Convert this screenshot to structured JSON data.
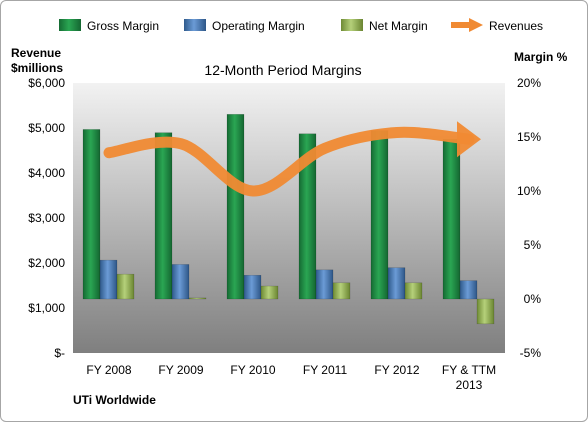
{
  "chart_data": {
    "type": "bar",
    "title": "12-Month Period Margins",
    "company_label": "UTi Worldwide",
    "left_axis": {
      "title_line1": "Revenue",
      "title_line2": "$millions",
      "range": [
        0,
        6000
      ],
      "ticks": [
        {
          "value": 0,
          "label": "$-"
        },
        {
          "value": 1000,
          "label": "$1,000"
        },
        {
          "value": 2000,
          "label": "$2,000"
        },
        {
          "value": 3000,
          "label": "$3,000"
        },
        {
          "value": 4000,
          "label": "$4,000"
        },
        {
          "value": 5000,
          "label": "$5,000"
        },
        {
          "value": 6000,
          "label": "$6,000"
        }
      ]
    },
    "right_axis": {
      "title": "Margin %",
      "range": [
        -5,
        20
      ],
      "ticks": [
        {
          "value": -5,
          "label": "-5%"
        },
        {
          "value": 0,
          "label": "0%"
        },
        {
          "value": 5,
          "label": "5%"
        },
        {
          "value": 10,
          "label": "10%"
        },
        {
          "value": 15,
          "label": "15%"
        },
        {
          "value": 20,
          "label": "20%"
        }
      ]
    },
    "categories": [
      {
        "line1": "FY 2008",
        "line2": ""
      },
      {
        "line1": "FY 2009",
        "line2": ""
      },
      {
        "line1": "FY 2010",
        "line2": ""
      },
      {
        "line1": "FY 2011",
        "line2": ""
      },
      {
        "line1": "FY 2012",
        "line2": ""
      },
      {
        "line1": "FY & TTM",
        "line2": "2013"
      }
    ],
    "series": [
      {
        "name": "Gross Margin",
        "kind": "bar",
        "axis": "right",
        "color": "#1e8c46",
        "values": [
          15.7,
          15.4,
          17.1,
          15.3,
          15.6,
          14.8
        ]
      },
      {
        "name": "Operating Margin",
        "kind": "bar",
        "axis": "right",
        "color": "#4f81bd",
        "values": [
          3.6,
          3.2,
          2.2,
          2.7,
          2.9,
          1.7
        ]
      },
      {
        "name": "Net Margin",
        "kind": "bar",
        "axis": "right",
        "color": "#9bbb59",
        "values": [
          2.3,
          0.1,
          1.2,
          1.5,
          1.5,
          -2.3
        ]
      },
      {
        "name": "Revenues",
        "kind": "line",
        "axis": "left",
        "color": "#f08a33",
        "values": [
          4450,
          4650,
          3600,
          4550,
          4900,
          4750
        ]
      }
    ],
    "legend_position": "top",
    "grid": false
  }
}
